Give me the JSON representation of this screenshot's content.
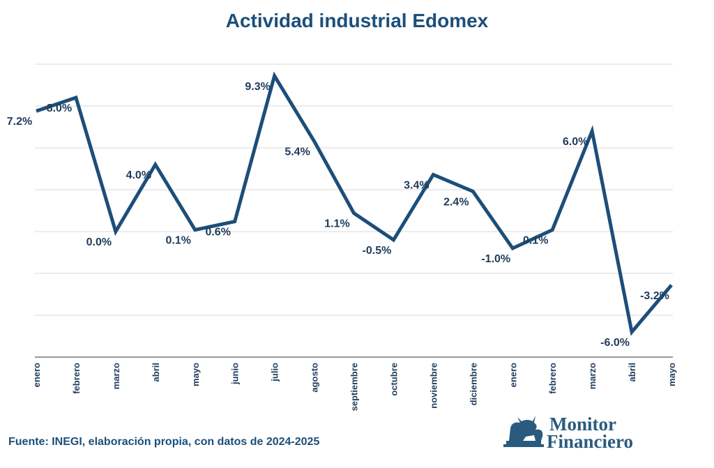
{
  "chart_data": {
    "type": "line",
    "title": "Actividad industrial Edomex",
    "categories": [
      "enero",
      "febrero",
      "marzo",
      "abril",
      "mayo",
      "junio",
      "julio",
      "agosto",
      "septiembre",
      "octubre",
      "noviembre",
      "diciembre",
      "enero",
      "febrero",
      "marzo",
      "abril",
      "mayo"
    ],
    "values": [
      7.2,
      8.0,
      0.0,
      4.0,
      0.1,
      0.6,
      9.3,
      5.4,
      1.1,
      -0.5,
      3.4,
      2.4,
      -1.0,
      0.1,
      6.0,
      -6.0,
      -3.2
    ],
    "data_labels": [
      "7.2%",
      "8.0%",
      "0.0%",
      "4.0%",
      "0.1%",
      "0.6%",
      "9.3%",
      "5.4%",
      "1.1%",
      "-0.5%",
      "3.4%",
      "2.4%",
      "-1.0%",
      "0.1%",
      "6.0%",
      "-6.0%",
      "-3.2%"
    ],
    "ylim": [
      -7.5,
      10
    ],
    "gridlines": [
      -7.5,
      -5,
      -2.5,
      0,
      2.5,
      5,
      7.5,
      10
    ],
    "grid": true,
    "y_axis_labels_shown": false,
    "line_color": "#1d4e79",
    "label_color": "#1f3b5c"
  },
  "footer": "Fuente: INEGI, elaboración propia, con datos de 2024-2025",
  "logo": {
    "line1": "Monitor",
    "line2": "Financiero",
    "color": "#2a5b7e"
  }
}
